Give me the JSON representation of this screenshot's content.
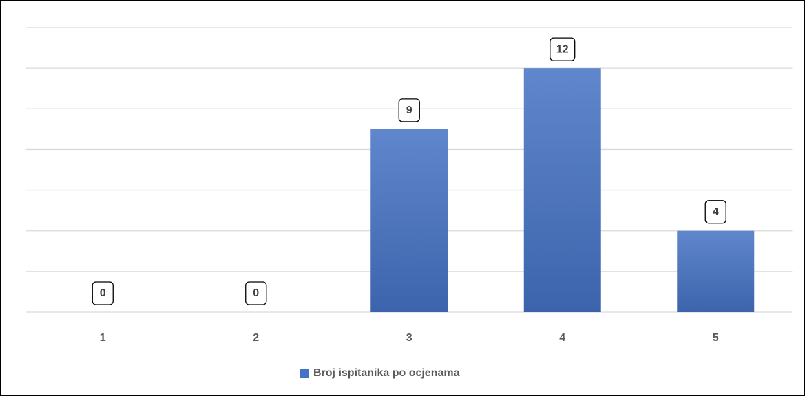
{
  "chart_data": {
    "type": "bar",
    "categories": [
      "1",
      "2",
      "3",
      "4",
      "5"
    ],
    "series": [
      {
        "name": "Broj ispitanika po ocjenama",
        "color": "#4472c4",
        "values": [
          0,
          0,
          9,
          12,
          4
        ]
      }
    ],
    "ylim": [
      0,
      14
    ],
    "yticks": [
      0,
      2,
      4,
      6,
      8,
      10,
      12,
      14
    ],
    "grid": true,
    "legend": "bottom"
  }
}
